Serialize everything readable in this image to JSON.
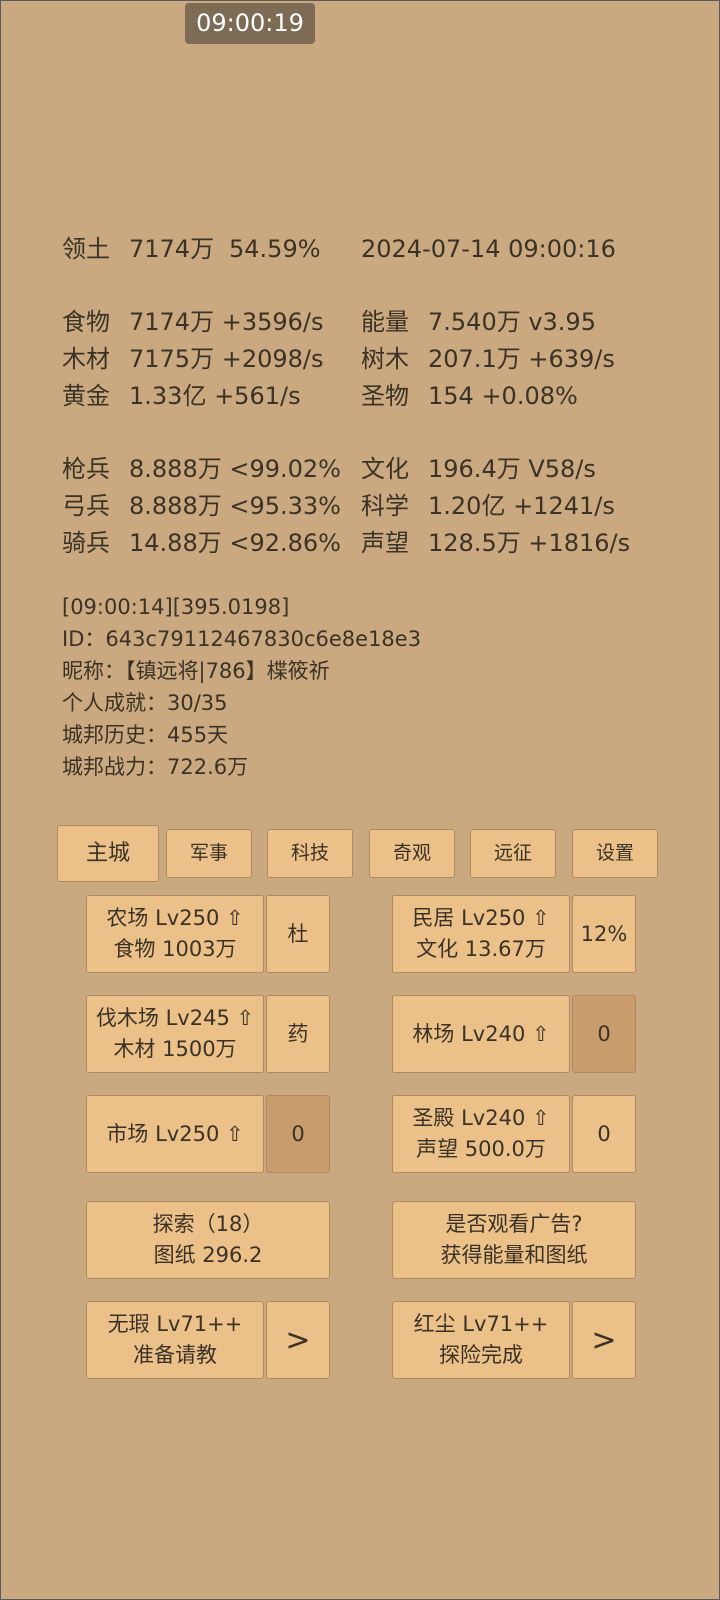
{
  "clock": "09:00:19",
  "header": {
    "label": "领土",
    "value": "7174万",
    "percent": "54.59%",
    "datetime": "2024-07-14 09:00:16"
  },
  "resource_groups": [
    [
      {
        "label": "食物",
        "value": "7174万 +3596/s"
      },
      {
        "label": "能量",
        "value": "7.540万  v3.95"
      },
      {
        "label": "木材",
        "value": "7175万 +2098/s"
      },
      {
        "label": "树木",
        "value": "207.1万 +639/s"
      },
      {
        "label": "黄金",
        "value": "1.33亿 +561/s"
      },
      {
        "label": "圣物",
        "value": "154 +0.08%"
      }
    ],
    [
      {
        "label": "枪兵",
        "value": "8.888万 <99.02%"
      },
      {
        "label": "文化",
        "value": "196.4万 V58/s"
      },
      {
        "label": "弓兵",
        "value": "8.888万 <95.33%"
      },
      {
        "label": "科学",
        "value": "1.20亿 +1241/s"
      },
      {
        "label": "骑兵",
        "value": "14.88万 <92.86%"
      },
      {
        "label": "声望",
        "value": "128.5万 +1816/s"
      }
    ]
  ],
  "info_lines": [
    "[09:00:14][395.0198]",
    "ID：643c79112467830c6e8e18e3",
    "昵称：【镇远将|786】楪筱祈",
    "个人成就：30/35",
    "城邦历史：455天",
    "城邦战力：722.6万"
  ],
  "tabs": [
    "主城",
    "军事",
    "科技",
    "奇观",
    "远征",
    "设置"
  ],
  "active_tab": 0,
  "building_rows": [
    [
      {
        "lines": [
          "农场 Lv250 ⇧",
          "食物 1003万"
        ],
        "side": "杜"
      },
      {
        "lines": [
          "民居 Lv250 ⇧",
          "文化 13.67万"
        ],
        "side": "12%"
      }
    ],
    [
      {
        "lines": [
          "伐木场 Lv245 ⇧",
          "木材 1500万"
        ],
        "side": "药"
      },
      {
        "lines": [
          "林场 Lv240 ⇧"
        ],
        "side": "0",
        "side_dark": true
      }
    ],
    [
      {
        "lines": [
          "市场 Lv250 ⇧"
        ],
        "side": "0",
        "side_dark": true
      },
      {
        "lines": [
          "圣殿 Lv240 ⇧",
          "声望 500.0万"
        ],
        "side": "0"
      }
    ],
    [
      {
        "lines": [
          "探索（18）",
          "图纸 296.2"
        ]
      },
      {
        "lines": [
          "是否观看广告?",
          "获得能量和图纸"
        ]
      }
    ],
    [
      {
        "lines": [
          "无瑕 Lv71++",
          "准备请教"
        ],
        "side": ">"
      },
      {
        "lines": [
          "红尘 Lv71++",
          "探险完成"
        ],
        "side": ">"
      }
    ]
  ]
}
